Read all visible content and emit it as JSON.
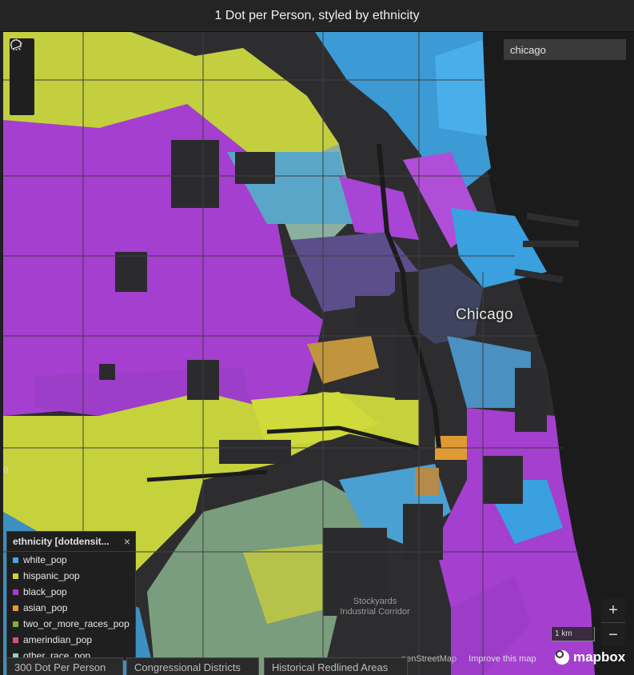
{
  "window": {
    "title": "1 Dot per Person, styled by ethnicity"
  },
  "map": {
    "search_value": "chicago",
    "city_label": "Chicago",
    "place_label_line1": "Stockyards",
    "place_label_line2": "Industrial Corridor",
    "edge_label": "0",
    "scale_label": "1 km",
    "attribution": "penStreetMap",
    "improve_label": "Improve this map",
    "logo_text": "mapbox",
    "zoom_in": "+",
    "zoom_out": "−",
    "tools": [
      "circle-select-icon",
      "polygon-select-icon",
      "lasso-select-icon"
    ]
  },
  "legend": {
    "title": "ethnicity [dotdensit...",
    "close": "×",
    "items": [
      {
        "label": "white_pop",
        "color": "#3fa9e6"
      },
      {
        "label": "hispanic_pop",
        "color": "#c9d43a"
      },
      {
        "label": "black_pop",
        "color": "#a83ad3"
      },
      {
        "label": "asian_pop",
        "color": "#e89a2e"
      },
      {
        "label": "two_or_more_races_pop",
        "color": "#7fb23a"
      },
      {
        "label": "amerindian_pop",
        "color": "#e0507a"
      },
      {
        "label": "other_race_pop",
        "color": "#8fd0c0"
      }
    ]
  },
  "tabs": [
    {
      "label": "300 Dot Per Person"
    },
    {
      "label": "Congressional Districts"
    },
    {
      "label": "Historical Redlined Areas"
    }
  ],
  "colors": {
    "background": "#2b2b2d",
    "water": "#1a1a1b",
    "white": "#3fa9e6",
    "hispanic": "#c9d43a",
    "black": "#a83ad3",
    "asian": "#e89a2e"
  }
}
